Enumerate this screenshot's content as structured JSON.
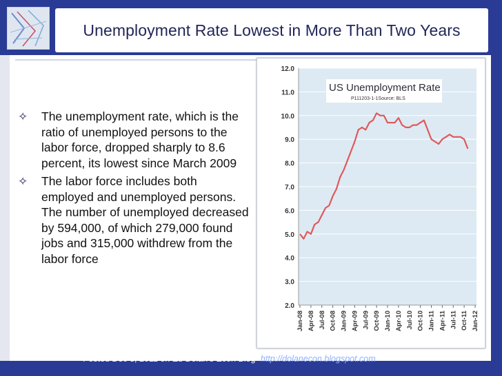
{
  "slide": {
    "title": "Unemployment Rate Lowest in More Than Two Years",
    "bullets": [
      "The unemployment rate, which is the ratio of unemployed persons to the labor force, dropped sharply to 8.6 percent, its lowest since March 2009",
      "The labor force includes both employed and unemployed persons. The number of unemployed decreased by 594,000, of which 279,000 found jobs and 315,000 withdrew from the labor force"
    ],
    "bullet_icon": "diamond-outline-icon",
    "footer_text": "Posted Dec 3, 2011 on Ed Dolan’s Econ Blog",
    "footer_link": "http://dolanecon.blogspot.com",
    "colors": {
      "background": "#2a3b96",
      "plot_background": "#ddeaf3",
      "series_line": "#e0585a",
      "title_text": "#1f2557"
    }
  },
  "chart_data": {
    "type": "line",
    "title": "US Unemployment Rate",
    "subtitle": "P111203-1-1Source: BLS",
    "xlabel": "",
    "ylabel": "",
    "ylim": [
      2.0,
      12.0
    ],
    "yticks": [
      "2.0",
      "3.0",
      "4.0",
      "5.0",
      "6.0",
      "7.0",
      "8.0",
      "9.0",
      "10.0",
      "11.0",
      "12.0"
    ],
    "xticks": [
      "Jan-08",
      "Apr-08",
      "Jul-08",
      "Oct-08",
      "Jan-09",
      "Apr-09",
      "Jul-09",
      "Oct-09",
      "Jan-10",
      "Apr-10",
      "Jul-10",
      "Oct-10",
      "Jan-11",
      "Apr-11",
      "Jul-11",
      "Oct-11",
      "Jan-12"
    ],
    "grid": true,
    "legend": "none",
    "x": [
      "2008-01",
      "2008-02",
      "2008-03",
      "2008-04",
      "2008-05",
      "2008-06",
      "2008-07",
      "2008-08",
      "2008-09",
      "2008-10",
      "2008-11",
      "2008-12",
      "2009-01",
      "2009-02",
      "2009-03",
      "2009-04",
      "2009-05",
      "2009-06",
      "2009-07",
      "2009-08",
      "2009-09",
      "2009-10",
      "2009-11",
      "2009-12",
      "2010-01",
      "2010-02",
      "2010-03",
      "2010-04",
      "2010-05",
      "2010-06",
      "2010-07",
      "2010-08",
      "2010-09",
      "2010-10",
      "2010-11",
      "2010-12",
      "2011-01",
      "2011-02",
      "2011-03",
      "2011-04",
      "2011-05",
      "2011-06",
      "2011-07",
      "2011-08",
      "2011-09",
      "2011-10",
      "2011-11"
    ],
    "series": [
      {
        "values": [
          5.0,
          4.8,
          5.1,
          5.0,
          5.4,
          5.5,
          5.8,
          6.1,
          6.2,
          6.6,
          6.9,
          7.4,
          7.7,
          8.1,
          8.5,
          8.9,
          9.4,
          9.5,
          9.4,
          9.7,
          9.8,
          10.1,
          10.0,
          10.0,
          9.7,
          9.7,
          9.7,
          9.9,
          9.6,
          9.5,
          9.5,
          9.6,
          9.6,
          9.7,
          9.8,
          9.4,
          9.0,
          8.9,
          8.8,
          9.0,
          9.1,
          9.2,
          9.1,
          9.1,
          9.1,
          9.0,
          8.6
        ]
      }
    ]
  }
}
